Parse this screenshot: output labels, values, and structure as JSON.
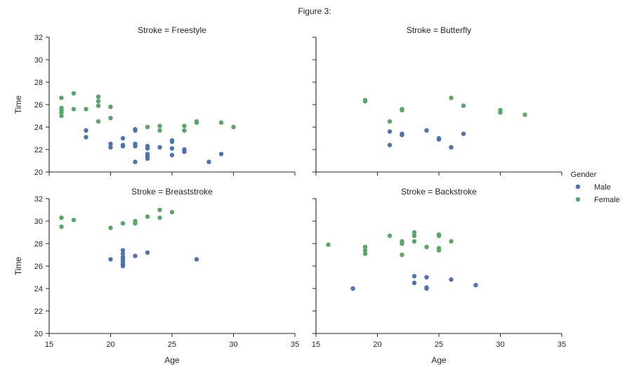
{
  "figure_title": "Figure 3:",
  "chart_data": [
    {
      "type": "scatter",
      "title": "Stroke = Freestyle",
      "xlabel": "",
      "ylabel": "Time",
      "xlim": [
        15,
        35
      ],
      "ylim": [
        20,
        32
      ],
      "series": [
        {
          "name": "Male",
          "color": "#4c72b0",
          "points": [
            [
              18,
              23.7
            ],
            [
              18,
              23.1
            ],
            [
              20,
              22.5
            ],
            [
              20,
              22.2
            ],
            [
              21,
              23.0
            ],
            [
              21,
              22.4
            ],
            [
              21,
              22.3
            ],
            [
              22,
              23.8
            ],
            [
              22,
              23.7
            ],
            [
              22,
              22.5
            ],
            [
              22,
              22.3
            ],
            [
              22,
              20.9
            ],
            [
              23,
              22.3
            ],
            [
              23,
              22.1
            ],
            [
              23,
              21.6
            ],
            [
              23,
              21.4
            ],
            [
              23,
              21.2
            ],
            [
              24,
              22.2
            ],
            [
              25,
              22.8
            ],
            [
              25,
              22.7
            ],
            [
              25,
              22.1
            ],
            [
              25,
              21.5
            ],
            [
              26,
              22.0
            ],
            [
              26,
              21.8
            ],
            [
              28,
              20.9
            ],
            [
              29,
              21.6
            ]
          ]
        },
        {
          "name": "Female",
          "color": "#55a868",
          "points": [
            [
              16,
              26.6
            ],
            [
              16,
              25.7
            ],
            [
              16,
              25.5
            ],
            [
              16,
              25.3
            ],
            [
              16,
              25.0
            ],
            [
              17,
              27.0
            ],
            [
              17,
              25.6
            ],
            [
              18,
              25.6
            ],
            [
              19,
              26.7
            ],
            [
              19,
              26.3
            ],
            [
              19,
              25.9
            ],
            [
              19,
              24.5
            ],
            [
              20,
              25.8
            ],
            [
              20,
              24.8
            ],
            [
              23,
              24.0
            ],
            [
              24,
              24.1
            ],
            [
              24,
              23.7
            ],
            [
              26,
              24.1
            ],
            [
              26,
              23.7
            ],
            [
              27,
              24.5
            ],
            [
              27,
              24.4
            ],
            [
              29,
              24.4
            ],
            [
              30,
              24.0
            ]
          ]
        }
      ]
    },
    {
      "type": "scatter",
      "title": "Stroke = Butterfly",
      "xlabel": "",
      "ylabel": "",
      "xlim": [
        15,
        35
      ],
      "ylim": [
        20,
        32
      ],
      "series": [
        {
          "name": "Male",
          "color": "#4c72b0",
          "points": [
            [
              21,
              23.6
            ],
            [
              21,
              22.4
            ],
            [
              22,
              23.4
            ],
            [
              22,
              23.3
            ],
            [
              24,
              23.7
            ],
            [
              25,
              23.0
            ],
            [
              25,
              22.9
            ],
            [
              26,
              22.2
            ],
            [
              27,
              23.4
            ]
          ]
        },
        {
          "name": "Female",
          "color": "#55a868",
          "points": [
            [
              19,
              26.4
            ],
            [
              19,
              26.3
            ],
            [
              21,
              24.5
            ],
            [
              22,
              25.6
            ],
            [
              22,
              25.5
            ],
            [
              26,
              26.6
            ],
            [
              27,
              25.9
            ],
            [
              30,
              25.5
            ],
            [
              30,
              25.3
            ],
            [
              32,
              25.1
            ]
          ]
        }
      ]
    },
    {
      "type": "scatter",
      "title": "Stroke = Breaststroke",
      "xlabel": "Age",
      "ylabel": "Time",
      "xlim": [
        15,
        35
      ],
      "ylim": [
        20,
        32
      ],
      "series": [
        {
          "name": "Male",
          "color": "#4c72b0",
          "points": [
            [
              20,
              26.6
            ],
            [
              21,
              27.4
            ],
            [
              21,
              27.1
            ],
            [
              21,
              26.8
            ],
            [
              21,
              26.6
            ],
            [
              21,
              26.5
            ],
            [
              21,
              26.3
            ],
            [
              21,
              26.1
            ],
            [
              21,
              26.0
            ],
            [
              22,
              26.9
            ],
            [
              23,
              27.2
            ],
            [
              27,
              26.6
            ]
          ]
        },
        {
          "name": "Female",
          "color": "#55a868",
          "points": [
            [
              16,
              30.3
            ],
            [
              16,
              29.5
            ],
            [
              17,
              30.1
            ],
            [
              20,
              29.4
            ],
            [
              21,
              29.8
            ],
            [
              22,
              30.0
            ],
            [
              22,
              29.8
            ],
            [
              23,
              30.4
            ],
            [
              24,
              31.0
            ],
            [
              24,
              30.3
            ],
            [
              25,
              30.8
            ]
          ]
        }
      ]
    },
    {
      "type": "scatter",
      "title": "Stroke = Backstroke",
      "xlabel": "Age",
      "ylabel": "",
      "xlim": [
        15,
        35
      ],
      "ylim": [
        20,
        32
      ],
      "series": [
        {
          "name": "Male",
          "color": "#4c72b0",
          "points": [
            [
              18,
              24.0
            ],
            [
              23,
              25.1
            ],
            [
              23,
              24.5
            ],
            [
              24,
              25.0
            ],
            [
              24,
              24.1
            ],
            [
              24,
              24.0
            ],
            [
              26,
              24.8
            ],
            [
              28,
              24.3
            ]
          ]
        },
        {
          "name": "Female",
          "color": "#55a868",
          "points": [
            [
              16,
              27.9
            ],
            [
              19,
              27.7
            ],
            [
              19,
              27.4
            ],
            [
              19,
              27.1
            ],
            [
              21,
              28.7
            ],
            [
              22,
              28.2
            ],
            [
              22,
              28.0
            ],
            [
              22,
              27.0
            ],
            [
              23,
              29.0
            ],
            [
              23,
              28.7
            ],
            [
              23,
              28.2
            ],
            [
              24,
              27.7
            ],
            [
              25,
              28.8
            ],
            [
              25,
              28.7
            ],
            [
              25,
              27.6
            ],
            [
              25,
              27.4
            ],
            [
              26,
              28.2
            ]
          ]
        }
      ]
    }
  ],
  "legend": {
    "title": "Gender",
    "placement": "right",
    "entries": [
      {
        "label": "Male",
        "color": "#4c72b0"
      },
      {
        "label": "Female",
        "color": "#55a868"
      }
    ]
  },
  "axes": {
    "xticks": [
      15,
      20,
      25,
      30,
      35
    ],
    "yticks": [
      20,
      22,
      24,
      26,
      28,
      30,
      32
    ]
  }
}
